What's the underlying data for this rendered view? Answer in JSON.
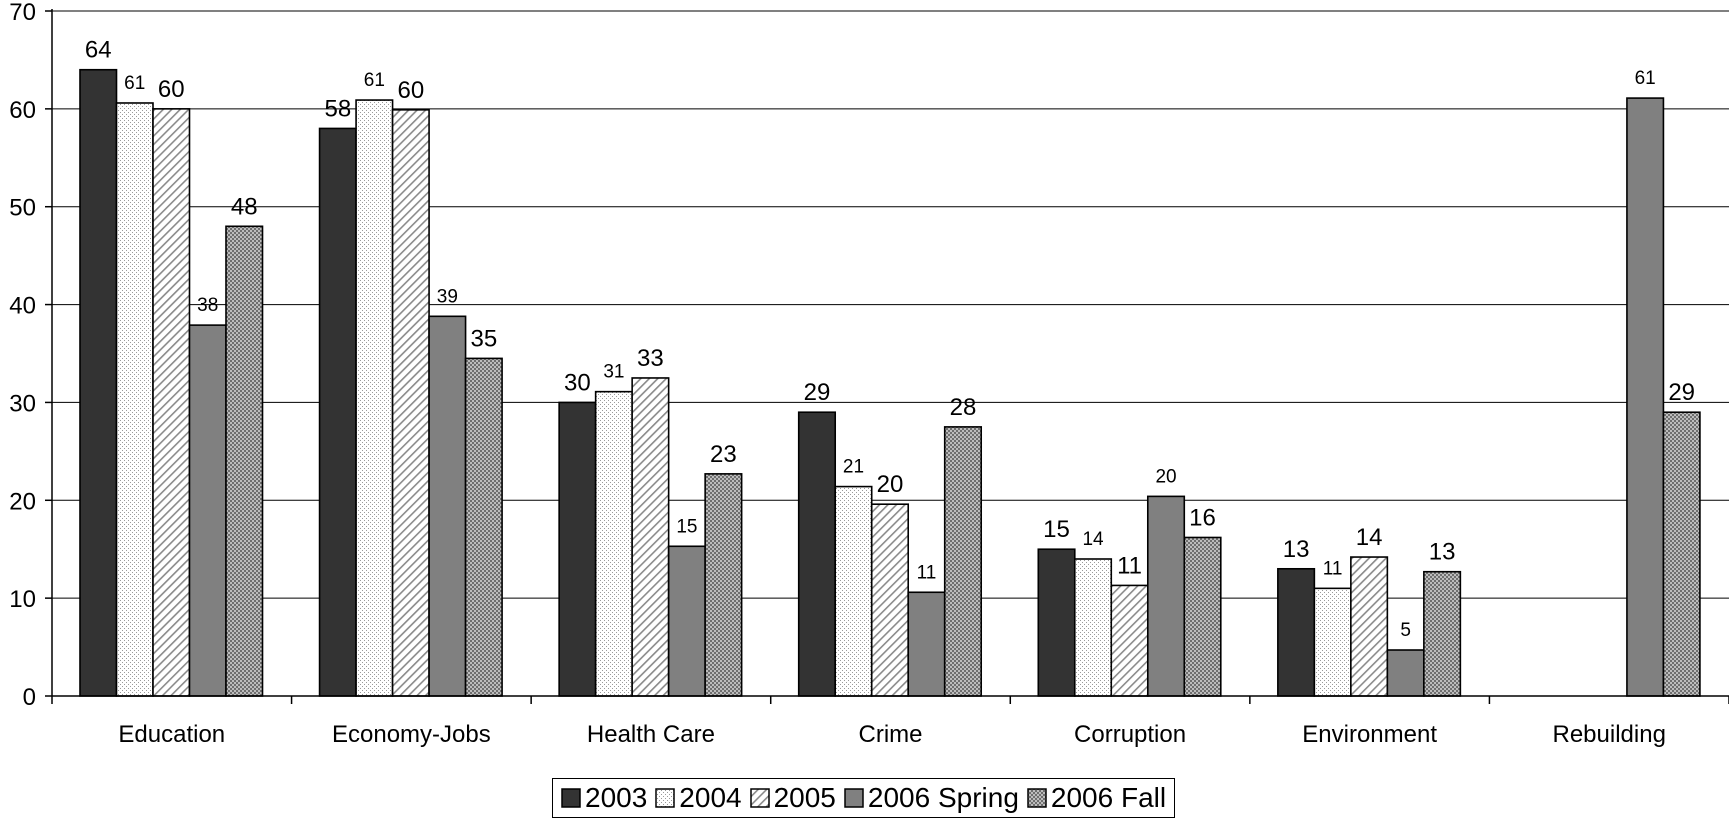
{
  "chart_data": {
    "type": "bar",
    "categories": [
      "Education",
      "Economy-Jobs",
      "Health Care",
      "Crime",
      "Corruption",
      "Environment",
      "Rebuilding"
    ],
    "series": [
      {
        "name": "2003",
        "values": [
          64,
          58,
          30,
          29,
          15,
          13,
          null
        ],
        "labels": [
          "64",
          "58",
          "30",
          "29",
          "15",
          "13",
          ""
        ]
      },
      {
        "name": "2004",
        "values": [
          60.6,
          60.9,
          31.1,
          21.4,
          14,
          11,
          null
        ],
        "labels": [
          "61",
          "61",
          "31",
          "21",
          "14",
          "11",
          ""
        ]
      },
      {
        "name": "2005",
        "values": [
          60,
          59.9,
          32.5,
          19.6,
          11.3,
          14.2,
          null
        ],
        "labels": [
          "60",
          "60",
          "33",
          "20",
          "11",
          "14",
          ""
        ]
      },
      {
        "name": "2006 Spring",
        "values": [
          37.9,
          38.8,
          15.3,
          10.6,
          20.4,
          4.7,
          61.1
        ],
        "labels": [
          "38",
          "39",
          "15",
          "11",
          "20",
          "5",
          "61"
        ]
      },
      {
        "name": "2006 Fall",
        "values": [
          48,
          34.5,
          22.7,
          27.5,
          16.2,
          12.7,
          29
        ],
        "labels": [
          "48",
          "35",
          "23",
          "28",
          "16",
          "13",
          "29"
        ]
      }
    ],
    "title": "",
    "xlabel": "",
    "ylabel": "",
    "ylim": [
      0,
      70
    ],
    "yticks": [
      "0",
      "10",
      "20",
      "30",
      "40",
      "50",
      "60",
      "70"
    ],
    "grid": true,
    "legend_position": "bottom-center"
  },
  "colors": {
    "series_2003": "#333333",
    "series_2004": "#f2f2f2",
    "series_2005": "#ffffff",
    "series_2006_spring": "#808080",
    "series_2006_fall": "#8c8c8c",
    "gridline": "#000000"
  },
  "legend": [
    {
      "name": "2003"
    },
    {
      "name": "2004"
    },
    {
      "name": "2005"
    },
    {
      "name": "2006 Spring"
    },
    {
      "name": "2006 Fall"
    }
  ]
}
